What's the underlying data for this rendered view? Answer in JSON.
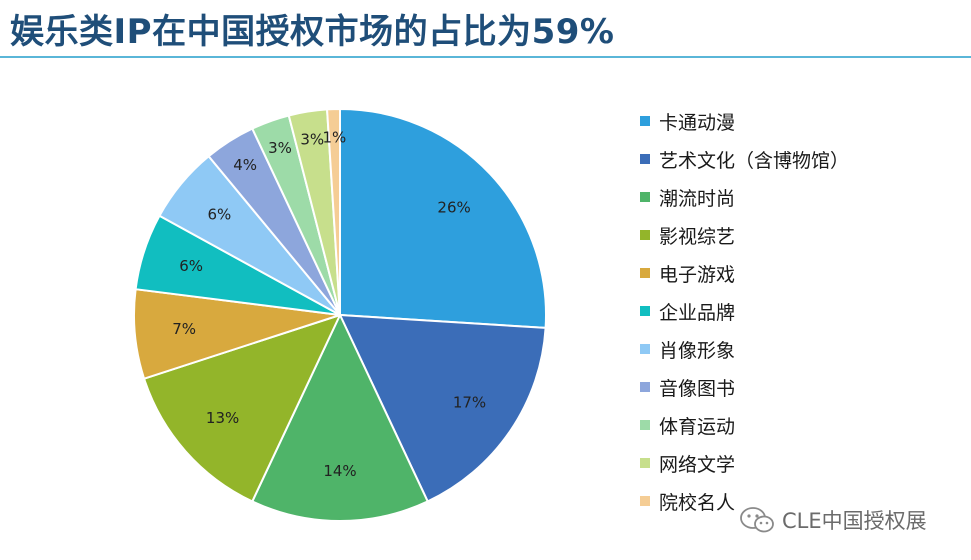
{
  "title": "娱乐类IP在中国授权市场的占比为59%",
  "watermark": "CLE中国授权展",
  "chart_data": {
    "type": "pie",
    "title": "",
    "series": [
      {
        "label": "卡通动漫",
        "value": 26,
        "display": "26%",
        "color": "#2e9fdd"
      },
      {
        "label": "艺术文化（含博物馆）",
        "value": 17,
        "display": "17%",
        "color": "#3b6db8"
      },
      {
        "label": "潮流时尚",
        "value": 14,
        "display": "14%",
        "color": "#4fb469"
      },
      {
        "label": "影视综艺",
        "value": 13,
        "display": "13%",
        "color": "#93b52a"
      },
      {
        "label": "电子游戏",
        "value": 7,
        "display": "7%",
        "color": "#d8a93e"
      },
      {
        "label": "企业品牌",
        "value": 6,
        "display": "6%",
        "color": "#11bec0"
      },
      {
        "label": "肖像形象",
        "value": 6,
        "display": "6%",
        "color": "#8fc9f5"
      },
      {
        "label": "音像图书",
        "value": 4,
        "display": "4%",
        "color": "#8da6dc"
      },
      {
        "label": "体育运动",
        "value": 3,
        "display": "3%",
        "color": "#9ddba8"
      },
      {
        "label": "网络文学",
        "value": 3,
        "display": "3%",
        "color": "#c7df8c"
      },
      {
        "label": "院校名人",
        "value": 1,
        "display": "1%",
        "color": "#f5cd95"
      }
    ],
    "start_angle": "12 o'clock",
    "direction": "clockwise",
    "legend_placement": "right"
  }
}
